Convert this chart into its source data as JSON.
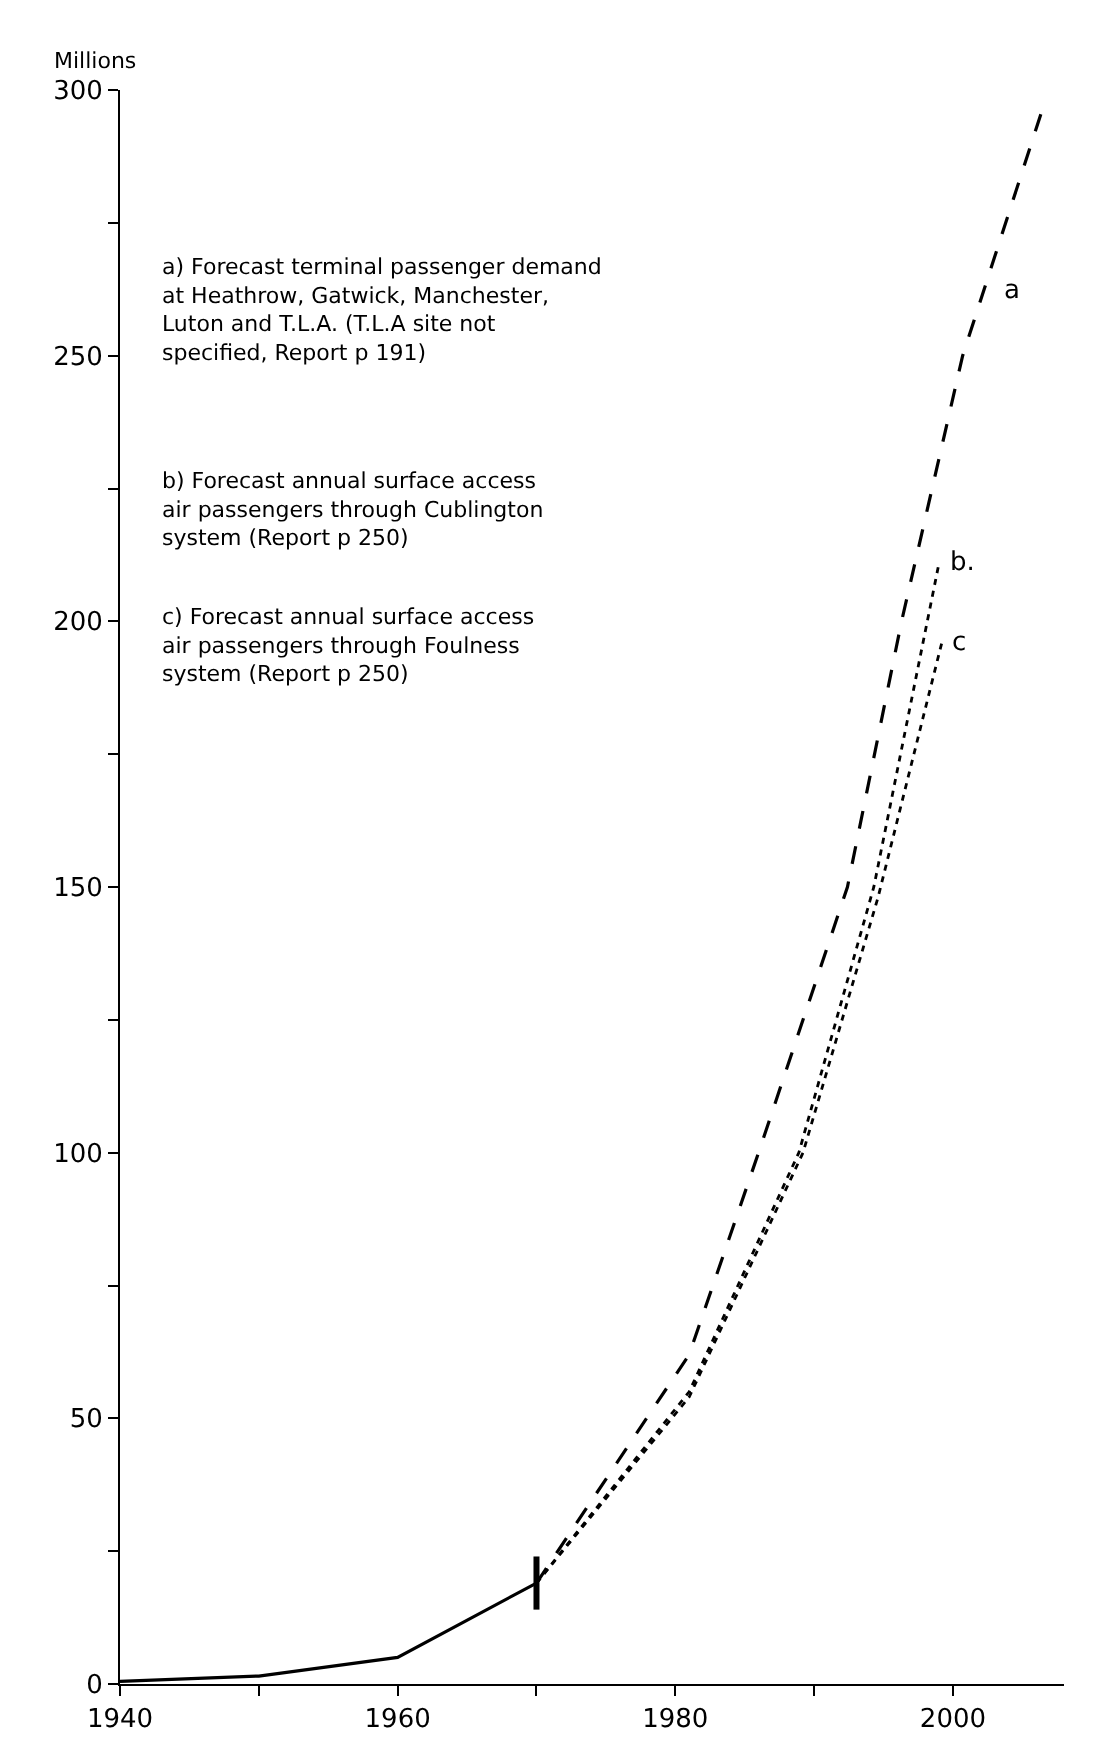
{
  "chart_data": {
    "type": "line",
    "ylabel": "Millions",
    "xlim": [
      1940,
      2008
    ],
    "ylim": [
      0,
      300
    ],
    "xticks": [
      1940,
      {
        "value": 1950,
        "label": null
      },
      1960,
      {
        "value": 1970,
        "label": null
      },
      1980,
      {
        "value": 1990,
        "label": null
      },
      2000
    ],
    "yticks": [
      0,
      {
        "value": 25,
        "label": null
      },
      50,
      {
        "value": 75,
        "label": null
      },
      100,
      {
        "value": 125,
        "label": null
      },
      150,
      {
        "value": 175,
        "label": null
      },
      200,
      {
        "value": 225,
        "label": null
      },
      250,
      {
        "value": 275,
        "label": null
      },
      300
    ],
    "marker": "none",
    "series": [
      {
        "color": "#000000",
        "line_style": "solid",
        "x": [
          1940,
          1950,
          1960,
          1970
        ],
        "values": [
          0.5,
          1.5,
          5,
          19
        ],
        "errors": [
          null,
          null,
          null,
          [
            14,
            24
          ]
        ]
      },
      {
        "color": "#000000",
        "line_style": "dashed",
        "x": [
          1970,
          1981,
          1986,
          1992.4,
          1996.3,
          2000.7,
          2006.4
        ],
        "values": [
          19,
          62,
          100,
          150,
          200,
          250,
          296
        ]
      },
      {
        "color": "#000000",
        "line_style": "dotted",
        "x": [
          1970,
          1981,
          1988.9,
          1994.3,
          1999
        ],
        "values": [
          19,
          55,
          100,
          150,
          211
        ]
      },
      {
        "color": "#000000",
        "line_style": "dotted",
        "x": [
          1970,
          1981,
          1989.2,
          1994.6,
          1999.2
        ],
        "values": [
          19,
          54,
          100,
          148,
          196
        ]
      }
    ],
    "annotations": [
      "a) Forecast terminal passenger demand\nat Heathrow, Gatwick, Manchester,\nLuton and T.L.A. (T.L.A site not\nspecified, Report p 191)",
      "b) Forecast annual surface access\nair passengers through Cublington\nsystem (Report p 250)",
      "c) Forecast annual surface access\nair passengers through Foulness\nsystem (Report p 250)",
      {
        "text": "a",
        "x": 2003,
        "y": 262
      },
      {
        "text": "b.",
        "x": 1999,
        "y": 211
      },
      {
        "text": "c",
        "x": 1999.2,
        "y": 196
      }
    ]
  }
}
